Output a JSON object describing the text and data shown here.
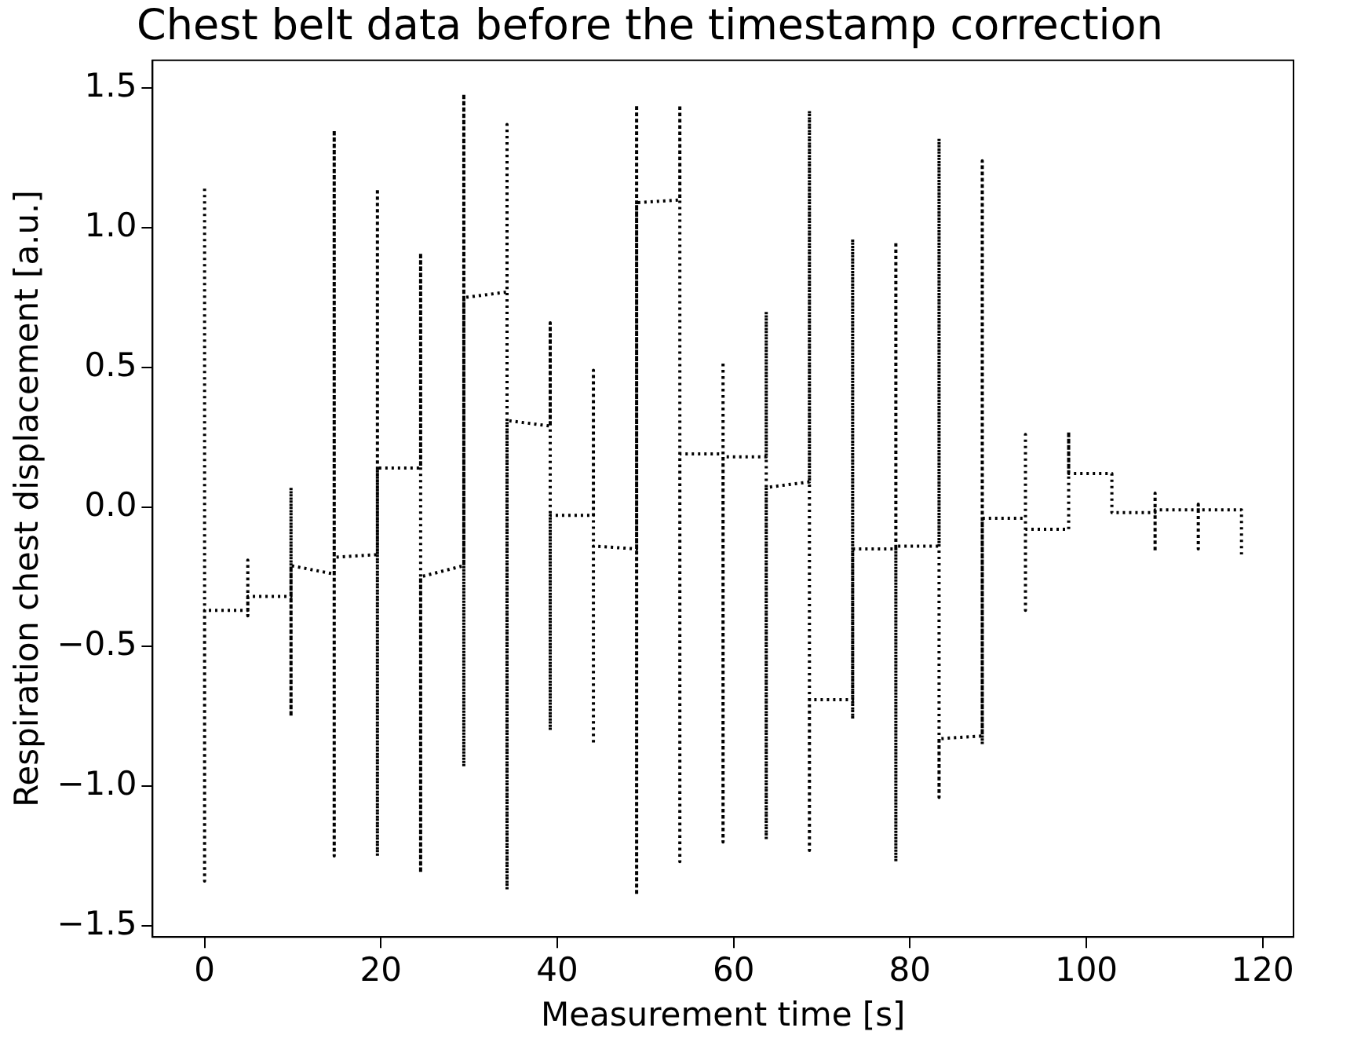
{
  "chart_data": {
    "type": "line",
    "title": "Chest belt data before the timestamp correction",
    "xlabel": "Measurement time [s]",
    "ylabel": "Respiration chest displacement [a.u.]",
    "xlim": [
      -5.9,
      123.5
    ],
    "xticks": [
      0,
      20,
      40,
      60,
      80,
      100,
      120
    ],
    "ylim": [
      -1.54,
      1.6
    ],
    "yticks": [
      {
        "value": -1.5,
        "label": "−1.5"
      },
      {
        "value": -1.0,
        "label": "−1.0"
      },
      {
        "value": -0.5,
        "label": "−0.5"
      },
      {
        "value": 0,
        "label": "0.0"
      },
      {
        "value": 0.5,
        "label": "0.5"
      },
      {
        "value": 1.0,
        "label": "1.0"
      },
      {
        "value": 1.5,
        "label": "1.5"
      }
    ],
    "grid": false,
    "legend": false,
    "marker": "none",
    "line_style": "dotted",
    "series": [
      {
        "color": "#000000",
        "x": [
          0,
          0,
          0,
          4.9,
          4.9,
          4.9,
          4.9,
          9.8,
          9.8,
          9.8,
          9.8,
          14.7,
          14.7,
          14.7,
          14.7,
          19.6,
          19.6,
          19.6,
          19.6,
          24.5,
          24.5,
          24.5,
          24.5,
          29.4,
          29.4,
          29.4,
          29.4,
          34.3,
          34.3,
          34.3,
          34.3,
          39.2,
          39.2,
          39.2,
          39.2,
          44.1,
          44.1,
          44.1,
          44.1,
          49.0,
          49.0,
          49.0,
          49.0,
          53.9,
          53.9,
          53.9,
          53.9,
          58.8,
          58.8,
          58.8,
          58.8,
          63.7,
          63.7,
          63.7,
          63.7,
          68.6,
          68.6,
          68.6,
          68.6,
          73.5,
          73.5,
          73.5,
          73.5,
          78.4,
          78.4,
          78.4,
          78.4,
          83.3,
          83.3,
          83.3,
          83.3,
          88.2,
          88.2,
          88.2,
          88.2,
          93.1,
          93.1,
          93.1,
          93.1,
          98.0,
          98.0,
          98.0,
          102.9,
          102.9,
          107.8,
          107.8,
          107.8,
          107.8,
          112.7,
          112.7,
          112.7,
          112.7,
          117.6,
          117.6
        ],
        "values": [
          1.14,
          -1.34,
          -0.37,
          -0.37,
          -0.19,
          -0.39,
          -0.32,
          -0.32,
          0.07,
          -0.75,
          -0.21,
          -0.24,
          1.35,
          -1.25,
          -0.18,
          -0.17,
          1.14,
          -1.25,
          0.14,
          0.14,
          0.91,
          -1.31,
          -0.25,
          -0.21,
          1.48,
          -0.93,
          0.75,
          0.77,
          1.37,
          -1.37,
          0.31,
          0.29,
          0.66,
          -0.8,
          -0.03,
          -0.03,
          0.49,
          -0.85,
          -0.14,
          -0.15,
          1.44,
          -1.39,
          1.09,
          1.1,
          1.44,
          -1.27,
          0.19,
          0.19,
          0.52,
          -1.2,
          0.18,
          0.18,
          0.7,
          -1.19,
          0.07,
          0.09,
          1.42,
          -1.23,
          -0.69,
          -0.69,
          0.96,
          -0.76,
          -0.15,
          -0.15,
          0.95,
          -1.27,
          -0.14,
          -0.14,
          1.32,
          -1.04,
          -0.83,
          -0.82,
          1.24,
          -0.85,
          -0.04,
          -0.04,
          0.26,
          -0.37,
          -0.08,
          -0.08,
          0.27,
          0.12,
          0.12,
          -0.02,
          -0.02,
          0.05,
          -0.16,
          -0.01,
          -0.01,
          0.01,
          -0.15,
          -0.01,
          -0.01,
          -0.17
        ]
      }
    ]
  }
}
